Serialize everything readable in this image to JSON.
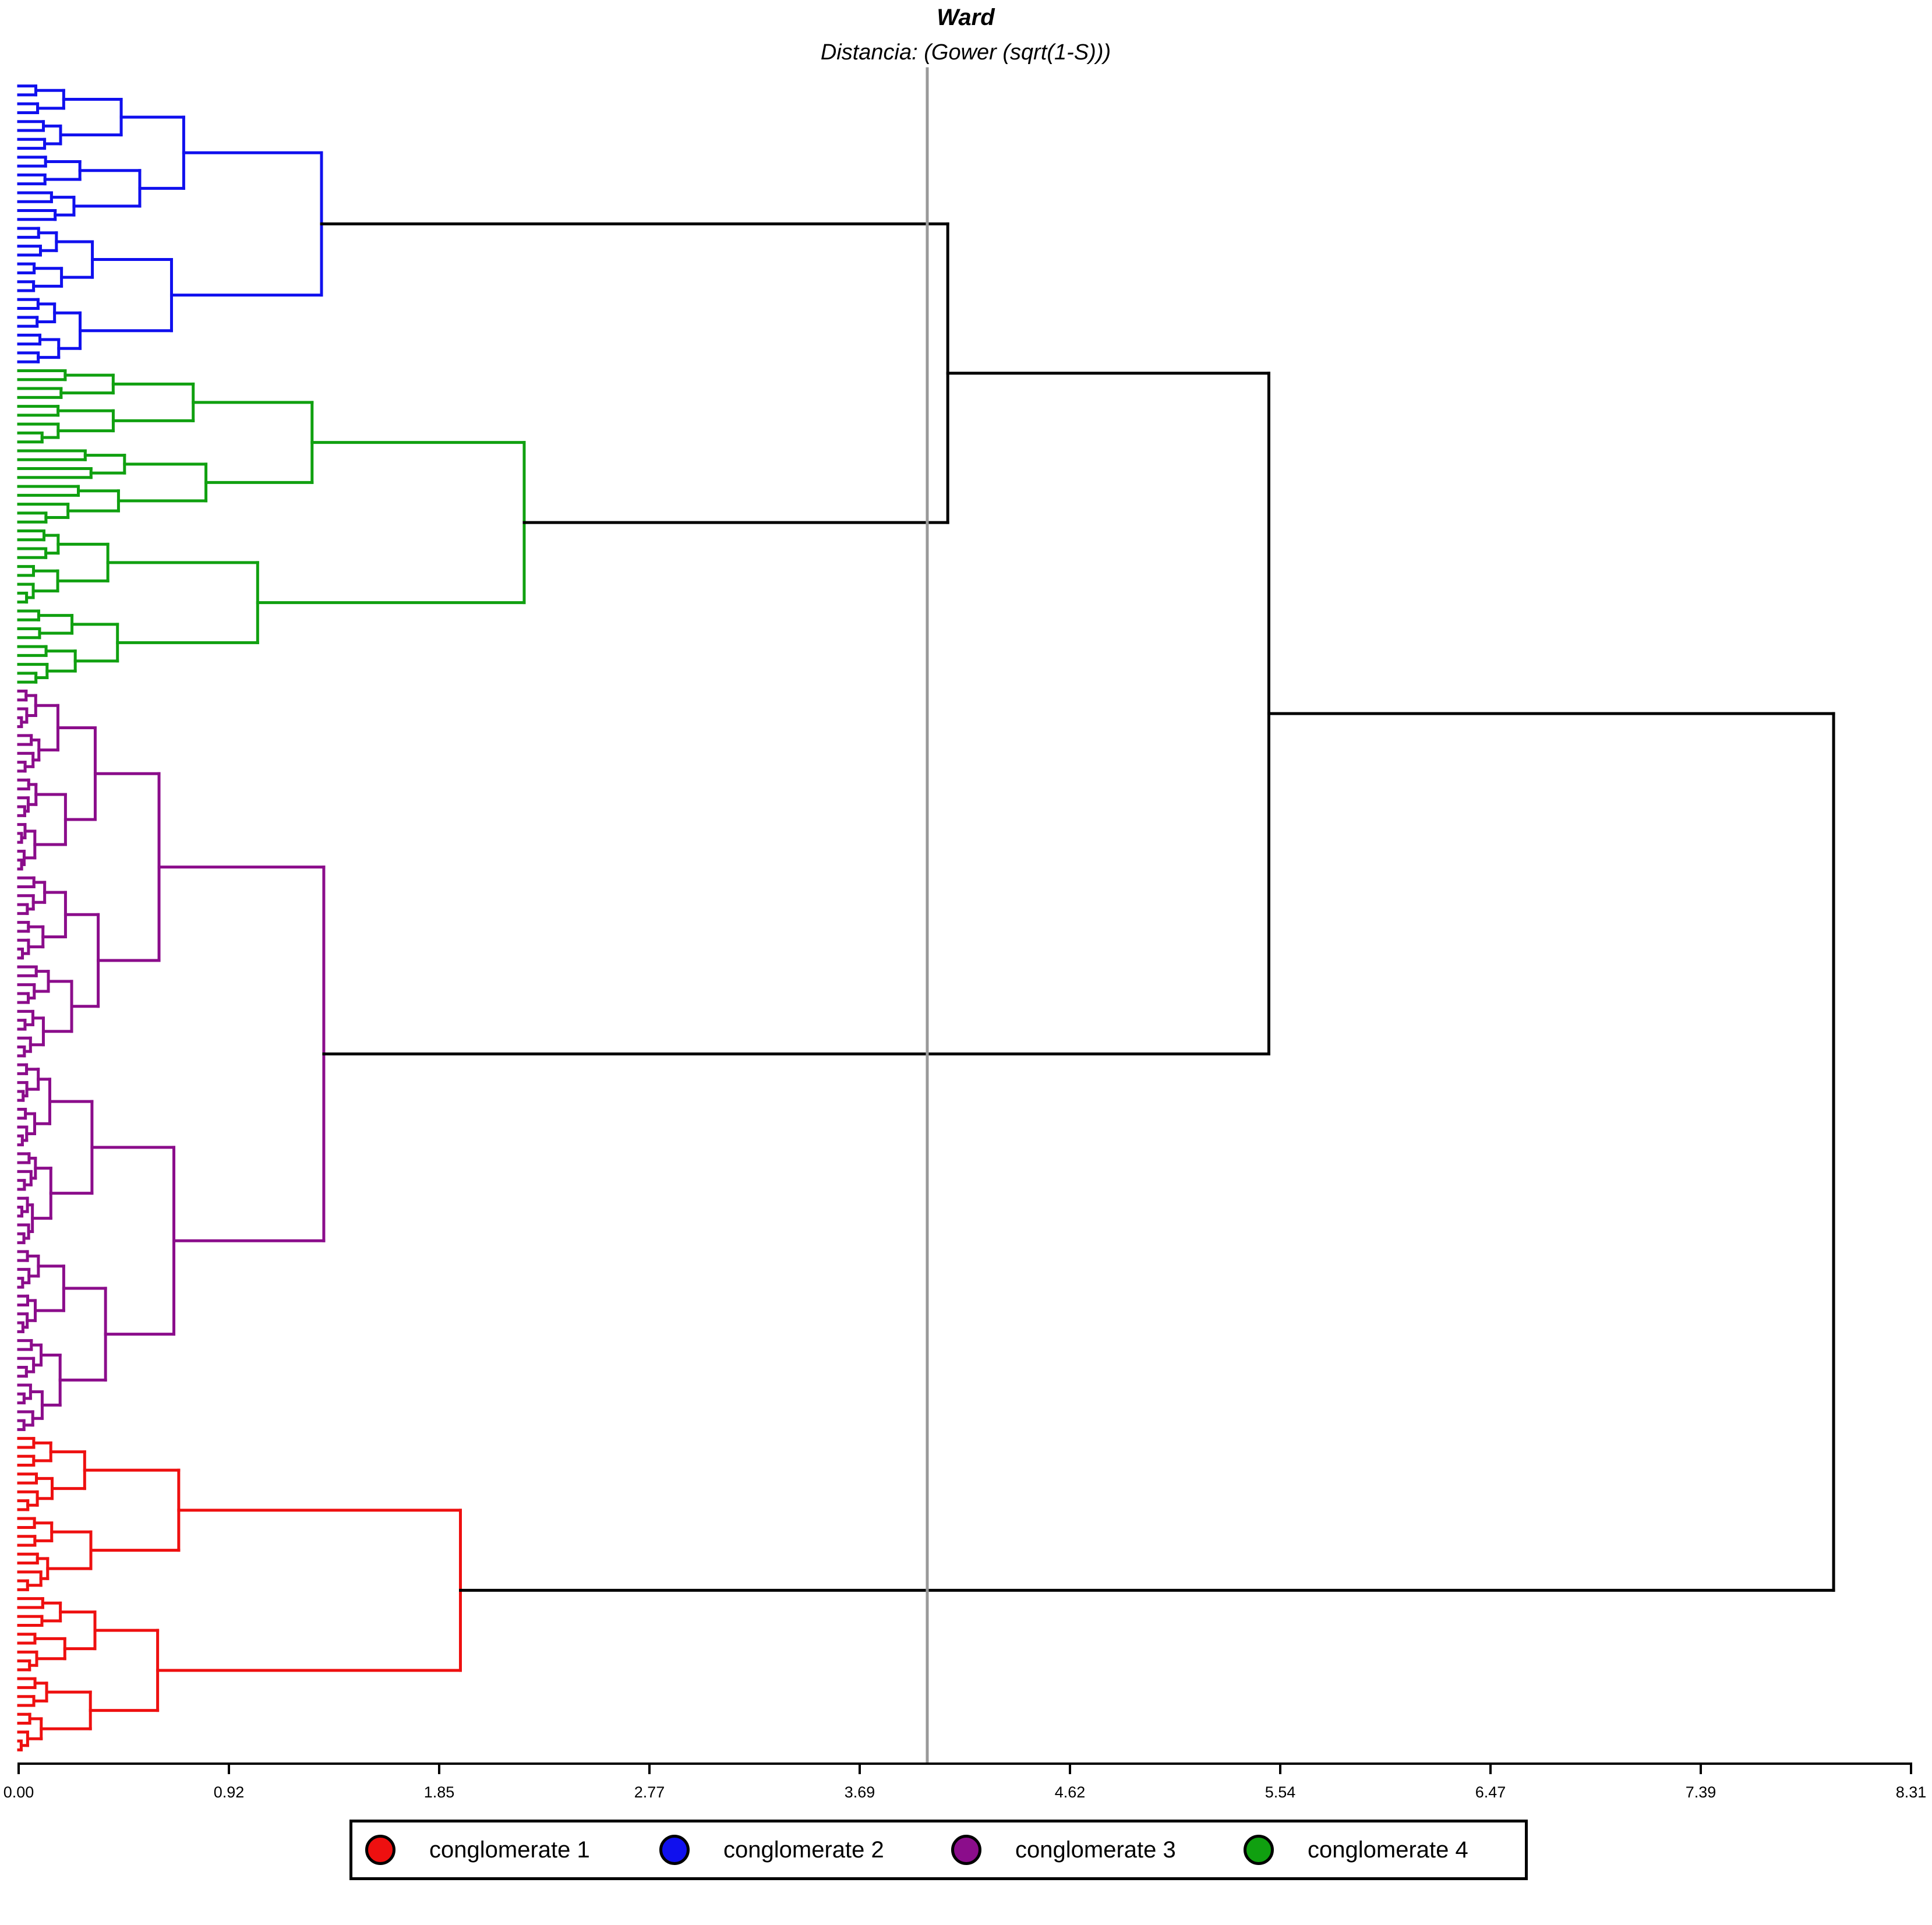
{
  "chart_data": {
    "type": "dendrogram",
    "title": "Ward",
    "subtitle": "Distancia: (Gower (sqrt(1-S)))",
    "xlim": [
      0,
      8.31
    ],
    "x_ticks": [
      "0.00",
      "0.92",
      "1.85",
      "2.77",
      "3.69",
      "4.62",
      "5.54",
      "6.47",
      "7.39",
      "8.31"
    ],
    "cut_line": 3.99,
    "legend_placement": "bottom-center",
    "clusters": [
      {
        "name": "conglomerate 2",
        "color": "#1010ee",
        "leaf_count": 32,
        "merge_height": 1.33
      },
      {
        "name": "conglomerate 4",
        "color": "#10a010",
        "leaf_count": 36,
        "merge_height": 2.22
      },
      {
        "name": "conglomerate 3",
        "color": "#8b0d8b",
        "leaf_count": 84,
        "merge_height": 1.34
      },
      {
        "name": "conglomerate 1",
        "color": "#ee1010",
        "leaf_count": 36,
        "merge_height": 1.94
      }
    ],
    "top_merges": [
      {
        "joins": [
          "conglomerate 2",
          "conglomerate 4"
        ],
        "height": 4.08
      },
      {
        "joins": [
          "conglomerate 2+4",
          "conglomerate 3"
        ],
        "height": 5.49
      },
      {
        "joins": [
          "conglomerate 2+4+3",
          "conglomerate 1"
        ],
        "height": 7.97
      }
    ]
  },
  "legend": [
    {
      "label": "conglomerate 1",
      "color": "#ee1010"
    },
    {
      "label": "conglomerate 2",
      "color": "#1010ee"
    },
    {
      "label": "conglomerate 3",
      "color": "#8b0d8b"
    },
    {
      "label": "conglomerate 4",
      "color": "#10a010"
    }
  ]
}
